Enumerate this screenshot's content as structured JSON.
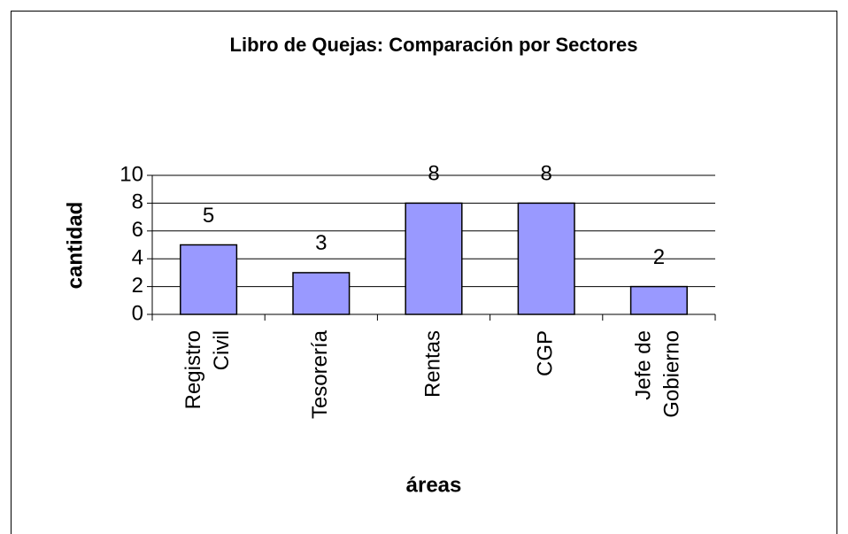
{
  "chart_data": {
    "type": "bar",
    "title": "Libro de Quejas: Comparación por Sectores",
    "xlabel": "áreas",
    "ylabel": "cantidad",
    "categories": [
      [
        "Registro",
        "Civil"
      ],
      [
        "Tesorería"
      ],
      [
        "Rentas"
      ],
      [
        "CGP"
      ],
      [
        "Jefe de",
        "Gobierno"
      ]
    ],
    "values": [
      5,
      3,
      8,
      8,
      2
    ],
    "color": "#9999ff",
    "ylim": [
      0,
      10
    ],
    "yticks": [
      0,
      2,
      4,
      6,
      8,
      10
    ],
    "grid": true
  }
}
